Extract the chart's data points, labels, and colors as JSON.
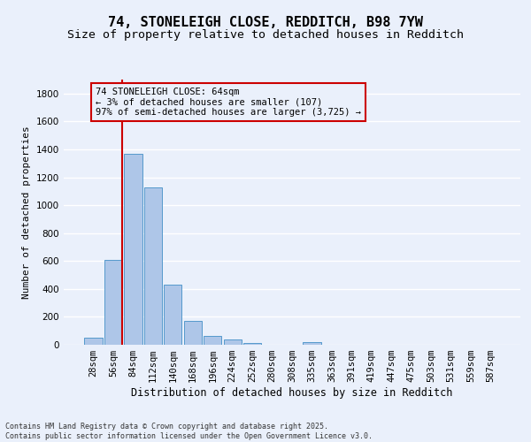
{
  "title": "74, STONELEIGH CLOSE, REDDITCH, B98 7YW",
  "subtitle": "Size of property relative to detached houses in Redditch",
  "xlabel": "Distribution of detached houses by size in Redditch",
  "ylabel": "Number of detached properties",
  "bin_labels": [
    "28sqm",
    "56sqm",
    "84sqm",
    "112sqm",
    "140sqm",
    "168sqm",
    "196sqm",
    "224sqm",
    "252sqm",
    "280sqm",
    "308sqm",
    "335sqm",
    "363sqm",
    "391sqm",
    "419sqm",
    "447sqm",
    "475sqm",
    "503sqm",
    "531sqm",
    "559sqm",
    "587sqm"
  ],
  "bar_values": [
    50,
    605,
    1370,
    1130,
    430,
    170,
    65,
    40,
    15,
    0,
    0,
    20,
    0,
    0,
    0,
    0,
    0,
    0,
    0,
    0,
    0
  ],
  "bar_color": "#aec6e8",
  "bar_edge_color": "#5599cc",
  "subject_line_color": "#cc0000",
  "annotation_text": "74 STONELEIGH CLOSE: 64sqm\n← 3% of detached houses are smaller (107)\n97% of semi-detached houses are larger (3,725) →",
  "annotation_box_color": "#cc0000",
  "ylim": [
    0,
    1900
  ],
  "yticks": [
    0,
    200,
    400,
    600,
    800,
    1000,
    1200,
    1400,
    1600,
    1800
  ],
  "bg_color": "#eaf0fb",
  "footer_text": "Contains HM Land Registry data © Crown copyright and database right 2025.\nContains public sector information licensed under the Open Government Licence v3.0.",
  "grid_color": "#ffffff",
  "title_fontsize": 11,
  "subtitle_fontsize": 9.5,
  "axis_label_fontsize": 8,
  "tick_fontsize": 7.5,
  "footer_fontsize": 6
}
